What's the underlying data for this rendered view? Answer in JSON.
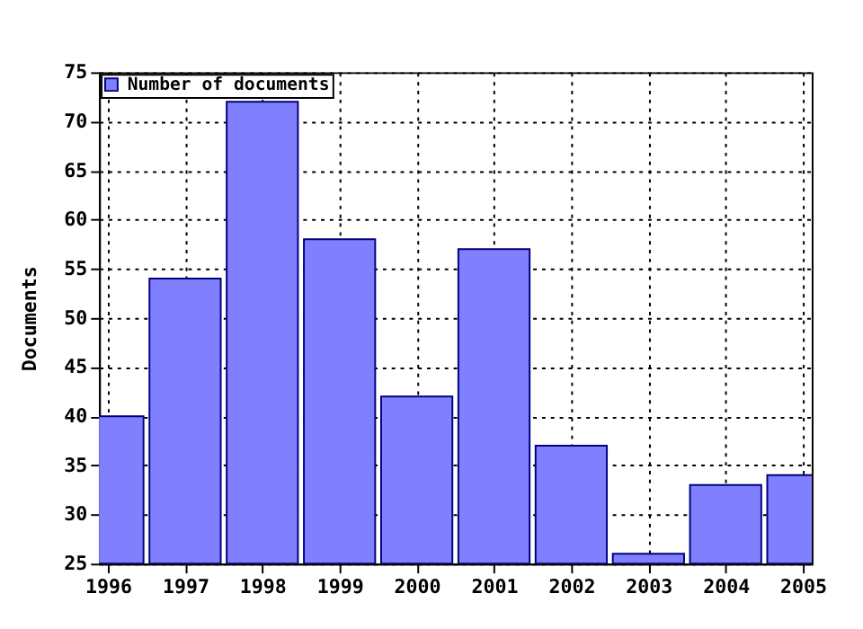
{
  "chart_data": {
    "type": "bar",
    "ylabel": "Documents",
    "x": [
      1996,
      1997,
      1998,
      1999,
      2000,
      2001,
      2002,
      2003,
      2004,
      2005
    ],
    "series": [
      {
        "name": "Number of documents",
        "color": "#8080ff",
        "values": [
          40,
          54,
          72,
          58,
          42,
          57,
          37,
          26,
          33,
          34
        ]
      }
    ],
    "xlim": [
      1996,
      2005
    ],
    "xticks": [
      1996,
      1997,
      1998,
      1999,
      2000,
      2001,
      2002,
      2003,
      2004,
      2005
    ],
    "ylim": [
      25,
      75
    ],
    "yticks": [
      25,
      30,
      35,
      40,
      45,
      50,
      55,
      60,
      65,
      70,
      75
    ],
    "grid": true,
    "legend": "top left"
  }
}
